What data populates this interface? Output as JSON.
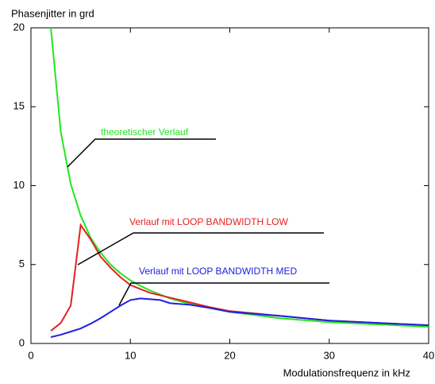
{
  "chart_data": {
    "type": "line",
    "title": "Phasenjitter in grd",
    "x_label": "Modulationsfrequenz in kHz",
    "x": [
      2,
      3,
      4,
      5,
      6,
      7,
      8,
      9,
      10,
      11,
      12,
      13,
      14,
      16,
      18,
      20,
      25,
      30,
      35,
      40
    ],
    "series": [
      {
        "color": "#22e622",
        "values": [
          20,
          13.4,
          10.1,
          8.1,
          6.7,
          5.75,
          5.0,
          4.45,
          4.0,
          3.65,
          3.35,
          3.1,
          2.85,
          2.5,
          2.25,
          2.0,
          1.6,
          1.35,
          1.2,
          1.05
        ]
      },
      {
        "color": "#e62020",
        "values": [
          0.8,
          1.3,
          2.4,
          7.5,
          6.6,
          5.5,
          4.8,
          4.2,
          3.7,
          3.45,
          3.2,
          3.05,
          2.9,
          2.6,
          2.3,
          2.05,
          1.75,
          1.45,
          1.3,
          1.15
        ]
      },
      {
        "color": "#2020e0",
        "values": [
          0.4,
          0.55,
          0.75,
          0.95,
          1.25,
          1.6,
          2.0,
          2.4,
          2.75,
          2.85,
          2.8,
          2.75,
          2.55,
          2.45,
          2.25,
          2.0,
          1.75,
          1.45,
          1.3,
          1.15
        ]
      }
    ],
    "annotations": [
      "theoretischer Verlauf",
      "Verlauf mit LOOP BANDWIDTH LOW",
      "Verlauf mit LOOP BANDWIDTH MED"
    ],
    "xlim": [
      0,
      40
    ],
    "xticks": [
      0,
      10,
      20,
      30,
      40
    ],
    "ylim": [
      0,
      20
    ],
    "yticks": [
      0,
      5,
      10,
      15,
      20
    ],
    "grid": false
  }
}
